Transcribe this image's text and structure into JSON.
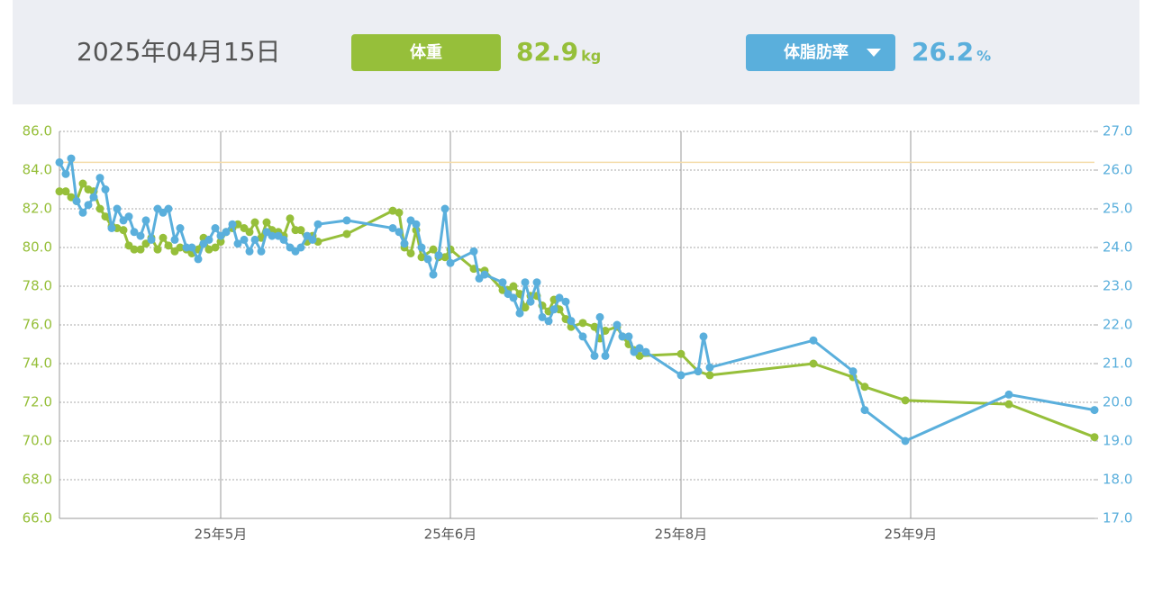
{
  "header": {
    "date": "2025年04月15日",
    "weight": 82.9,
    "weight_unit": "kg",
    "body_fat": 26.2,
    "body_fat_unit": "%"
  },
  "chart_data": {
    "type": "line",
    "xlim": [
      0,
      1149
    ],
    "xticks": [
      {
        "value": 179,
        "label": "25年5月"
      },
      {
        "value": 434,
        "label": "25年6月"
      },
      {
        "value": 690,
        "label": "25年8月"
      },
      {
        "value": 945,
        "label": "25年9月"
      }
    ],
    "ylim": [
      66,
      86
    ],
    "yticks": [
      {
        "value": 66,
        "label": "66.0"
      },
      {
        "value": 68,
        "label": "68.0"
      },
      {
        "value": 70,
        "label": "70.0"
      },
      {
        "value": 72,
        "label": "72.0"
      },
      {
        "value": 74,
        "label": "74.0"
      },
      {
        "value": 76,
        "label": "76.0"
      },
      {
        "value": 78,
        "label": "78.0"
      },
      {
        "value": 80,
        "label": "80.0"
      },
      {
        "value": 82,
        "label": "82.0"
      },
      {
        "value": 84,
        "label": "84.0"
      },
      {
        "value": 86,
        "label": "86.0"
      }
    ],
    "y2lim": [
      17,
      27
    ],
    "y2ticks": [
      {
        "value": 17,
        "label": "17.0"
      },
      {
        "value": 18,
        "label": "18.0"
      },
      {
        "value": 19,
        "label": "19.0"
      },
      {
        "value": 20,
        "label": "20.0"
      },
      {
        "value": 21,
        "label": "21.0"
      },
      {
        "value": 22,
        "label": "22.0"
      },
      {
        "value": 23,
        "label": "23.0"
      },
      {
        "value": 24,
        "label": "24.0"
      },
      {
        "value": 25,
        "label": "25.0"
      },
      {
        "value": 26,
        "label": "26.0"
      },
      {
        "value": 27,
        "label": "27.0"
      }
    ],
    "grid": true,
    "reference_line": {
      "value": 26.2,
      "axis": "y2",
      "color": "#f5dcaa"
    },
    "series": [
      {
        "name": "体重",
        "color": "#96bf3a",
        "x": [
          0,
          7,
          13,
          19,
          26,
          32,
          38,
          45,
          51,
          58,
          64,
          71,
          77,
          83,
          90,
          96,
          102,
          109,
          115,
          121,
          128,
          134,
          141,
          147,
          154,
          160,
          166,
          173,
          179,
          185,
          192,
          198,
          205,
          211,
          217,
          224,
          230,
          236,
          243,
          249,
          256,
          262,
          268,
          275,
          281,
          287,
          319,
          370,
          377,
          383,
          390,
          396,
          402,
          415,
          421,
          428,
          434,
          460,
          472,
          492,
          498,
          504,
          511,
          517,
          523,
          530,
          536,
          543,
          549,
          555,
          562,
          568,
          581,
          594,
          600,
          606,
          619,
          625,
          632,
          638,
          644,
          690,
          709,
          722,
          837,
          881,
          894,
          939,
          1054,
          1149
        ],
        "values": [
          82.9,
          82.9,
          82.6,
          82.4,
          83.3,
          83.0,
          82.9,
          82.0,
          81.6,
          81.1,
          81.0,
          80.9,
          80.1,
          79.9,
          79.9,
          80.2,
          80.5,
          79.9,
          80.5,
          80.1,
          79.8,
          80.0,
          79.9,
          79.7,
          79.9,
          80.5,
          79.9,
          80.0,
          80.3,
          80.8,
          81.0,
          81.2,
          81.0,
          80.8,
          81.3,
          80.5,
          81.3,
          80.9,
          80.8,
          80.6,
          81.5,
          80.9,
          80.9,
          80.3,
          80.6,
          80.3,
          80.7,
          81.9,
          81.8,
          80.0,
          79.7,
          80.9,
          79.5,
          79.9,
          79.5,
          79.5,
          79.9,
          78.9,
          78.8,
          77.8,
          77.8,
          78.0,
          77.6,
          76.9,
          77.5,
          77.5,
          77.0,
          76.7,
          77.3,
          76.8,
          76.3,
          75.9,
          76.1,
          75.9,
          75.3,
          75.7,
          75.9,
          75.4,
          75.0,
          74.7,
          74.4,
          74.5,
          73.6,
          73.4,
          74.0,
          73.3,
          72.8,
          72.1,
          71.9,
          70.2
        ]
      },
      {
        "name": "体脂肪率",
        "color": "#5aafdc",
        "axis": "y2",
        "x": [
          0,
          7,
          13,
          19,
          26,
          32,
          38,
          45,
          51,
          58,
          64,
          71,
          77,
          83,
          90,
          96,
          102,
          109,
          115,
          121,
          128,
          134,
          141,
          147,
          154,
          160,
          166,
          173,
          179,
          185,
          192,
          198,
          205,
          211,
          217,
          224,
          230,
          236,
          243,
          249,
          256,
          262,
          268,
          275,
          281,
          287,
          319,
          370,
          377,
          383,
          390,
          396,
          402,
          409,
          415,
          421,
          428,
          434,
          460,
          466,
          472,
          492,
          498,
          504,
          511,
          517,
          523,
          530,
          536,
          543,
          549,
          555,
          562,
          568,
          581,
          594,
          600,
          606,
          619,
          625,
          632,
          638,
          644,
          651,
          690,
          709,
          715,
          722,
          837,
          881,
          894,
          939,
          1054,
          1149
        ],
        "values": [
          26.2,
          25.9,
          26.3,
          25.2,
          24.9,
          25.1,
          25.3,
          25.8,
          25.5,
          24.5,
          25.0,
          24.7,
          24.8,
          24.4,
          24.3,
          24.7,
          24.2,
          25.0,
          24.9,
          25.0,
          24.2,
          24.5,
          24.0,
          24.0,
          23.7,
          24.1,
          24.2,
          24.5,
          24.3,
          24.4,
          24.6,
          24.1,
          24.2,
          23.9,
          24.2,
          23.9,
          24.4,
          24.3,
          24.3,
          24.2,
          24.0,
          23.9,
          24.0,
          24.3,
          24.2,
          24.6,
          24.7,
          24.5,
          24.4,
          24.1,
          24.7,
          24.6,
          24.0,
          23.7,
          23.3,
          23.8,
          25.0,
          23.6,
          23.9,
          23.2,
          23.3,
          23.1,
          22.8,
          22.7,
          22.3,
          23.1,
          22.6,
          23.1,
          22.2,
          22.1,
          22.4,
          22.7,
          22.6,
          22.1,
          21.7,
          21.2,
          22.2,
          21.2,
          22.0,
          21.7,
          21.7,
          21.3,
          21.4,
          21.3,
          20.7,
          20.8,
          21.7,
          20.9,
          21.6,
          20.8,
          19.8,
          19.0,
          20.2,
          19.8
        ]
      }
    ]
  }
}
